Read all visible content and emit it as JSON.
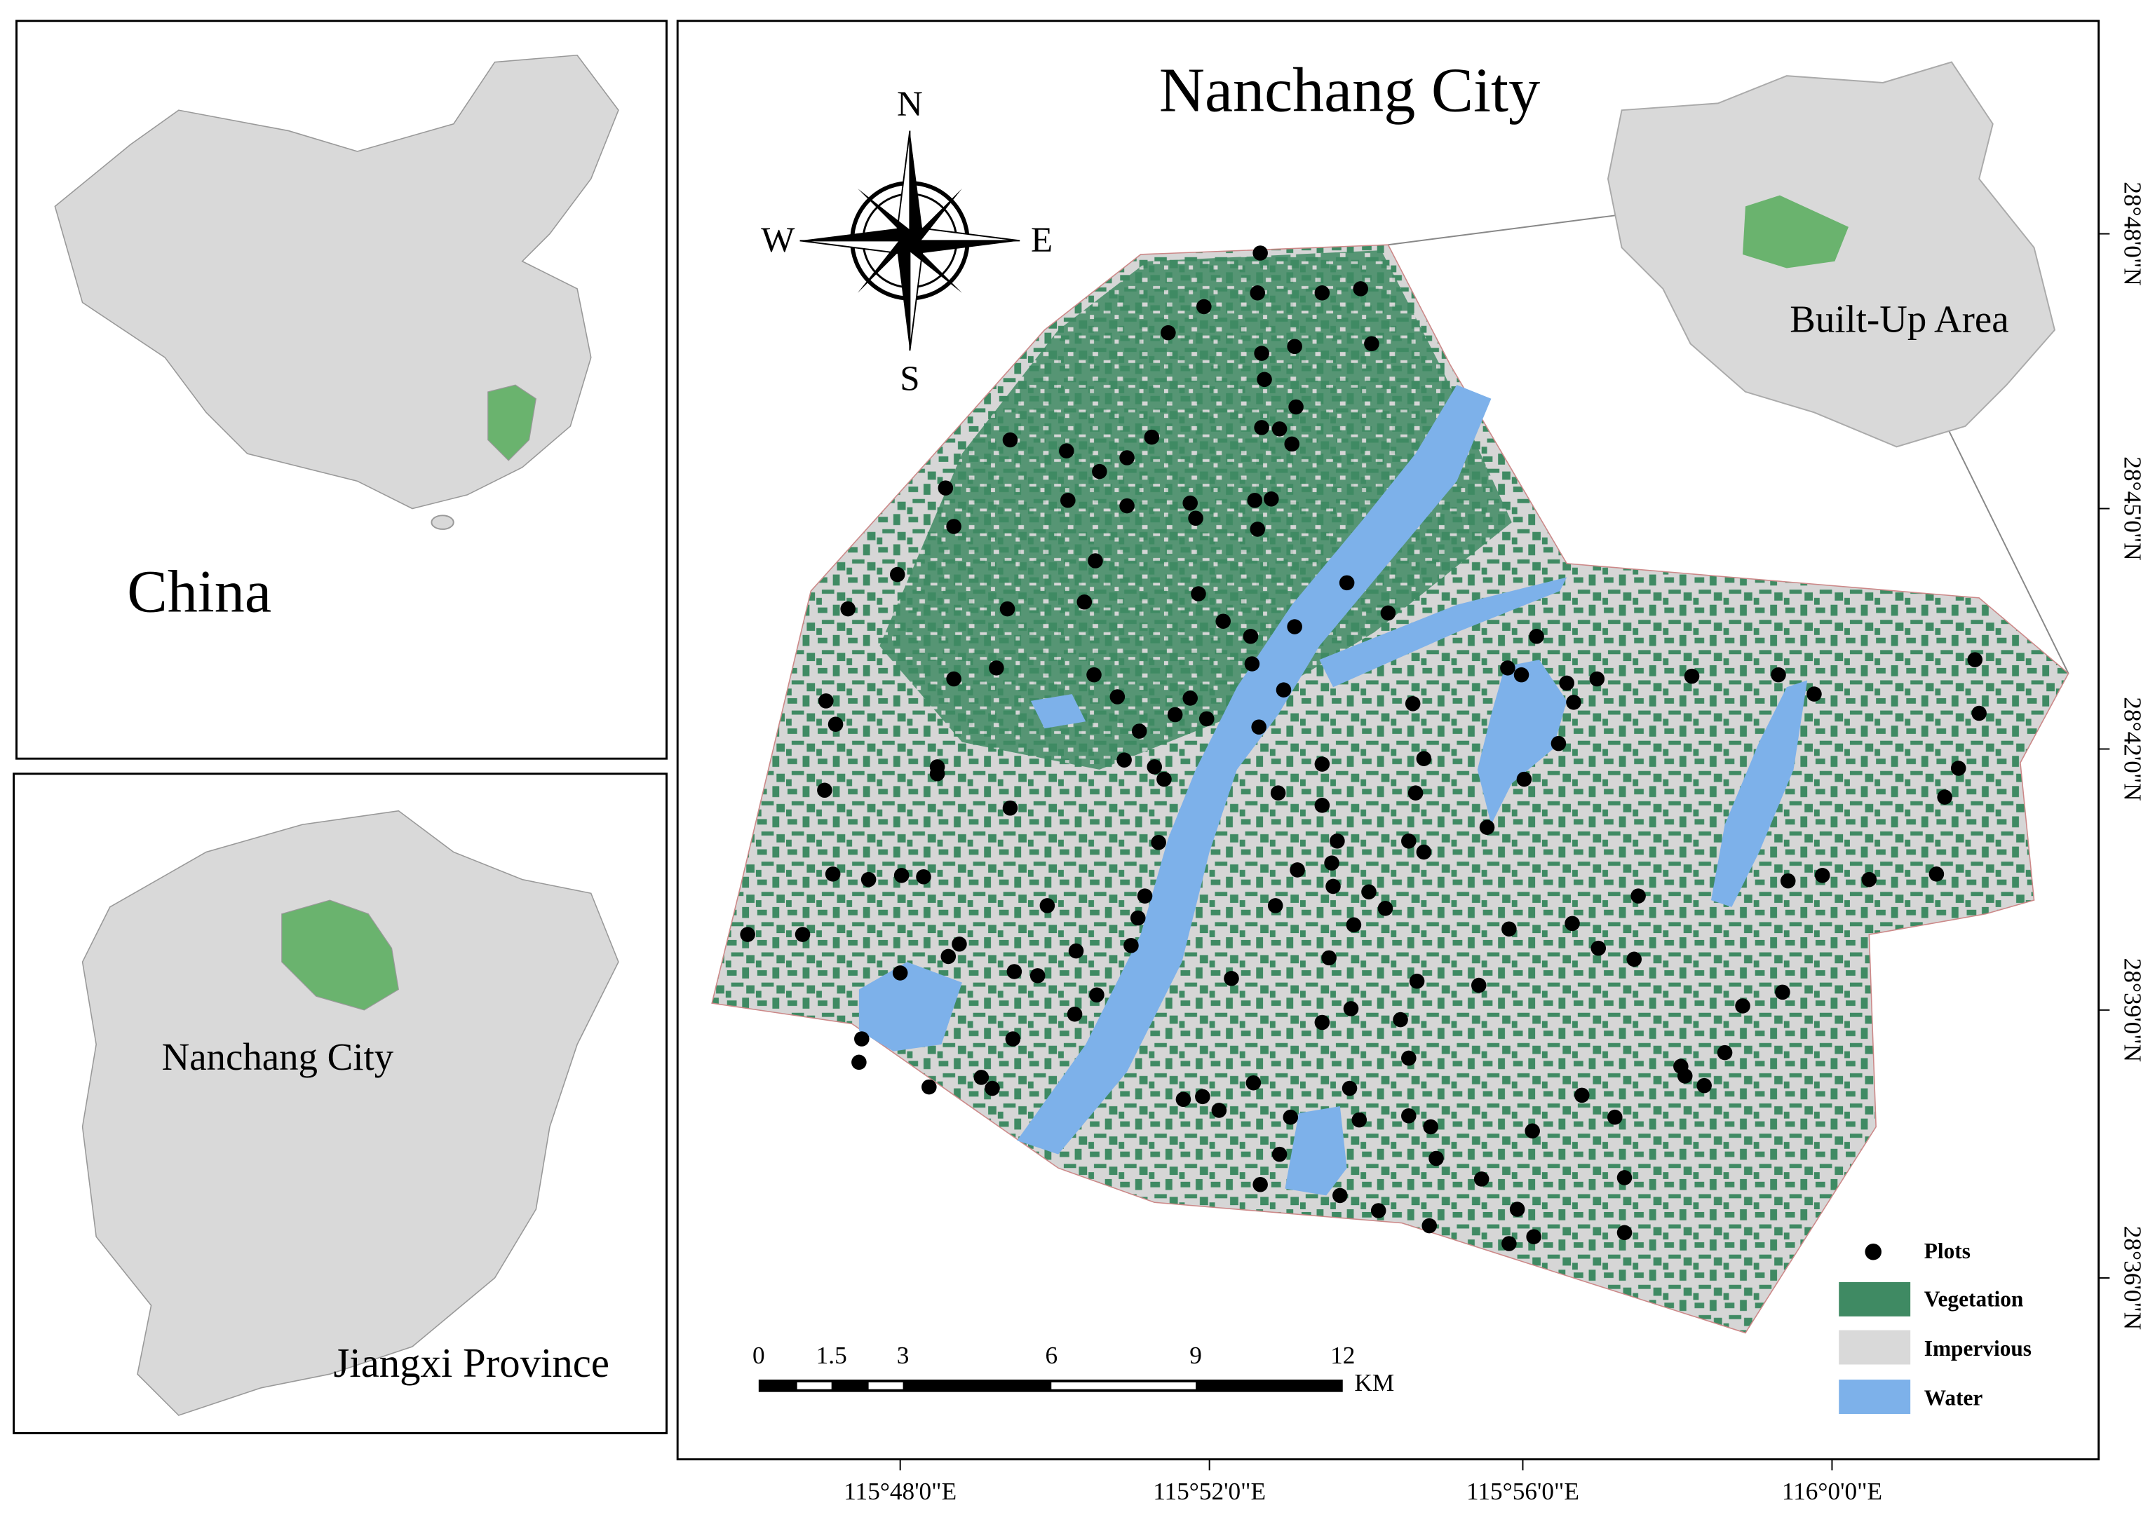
{
  "title": "Nanchang City",
  "compass": {
    "n": "N",
    "s": "S",
    "w": "W",
    "e": "E"
  },
  "inset_label": "Built-Up Area",
  "china_label": "China",
  "jiangxi": {
    "city_label": "Nanchang City",
    "province_label": "Jiangxi Province"
  },
  "legend": [
    "Plots",
    "Vegetation",
    "Impervious",
    "Water"
  ],
  "scale_bar": {
    "ticks": [
      "0",
      "1.5",
      "3",
      "6",
      "9",
      "12"
    ],
    "unit": "KM"
  },
  "longitude_labels": [
    "115°48'0\"E",
    "115°52'0\"E",
    "115°56'0\"E",
    "116°0'0\"E"
  ],
  "latitude_labels": [
    "28°48'0\"N",
    "28°45'0\"N",
    "28°42'0\"N",
    "28°39'0\"N",
    "28°36'0\"N"
  ]
}
